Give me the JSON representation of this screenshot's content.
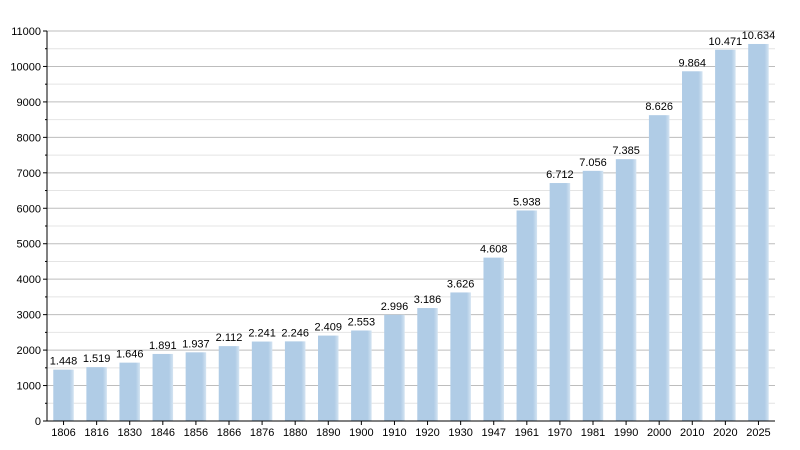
{
  "chart_data": {
    "type": "bar",
    "title": "",
    "xlabel": "",
    "ylabel": "",
    "ylim": [
      0,
      11000
    ],
    "yticks": [
      0,
      1000,
      2000,
      3000,
      4000,
      5000,
      6000,
      7000,
      8000,
      9000,
      10000,
      11000
    ],
    "ytick_labels": [
      "0",
      "1000",
      "2000",
      "3000",
      "4000",
      "5000",
      "6000",
      "7000",
      "8000",
      "9000",
      "10000",
      "11000"
    ],
    "grid": true,
    "legend": "none",
    "bar_color": "#b0cce6",
    "categories": [
      "1806",
      "1816",
      "1830",
      "1846",
      "1856",
      "1866",
      "1876",
      "1880",
      "1890",
      "1900",
      "1910",
      "1920",
      "1930",
      "1947",
      "1961",
      "1970",
      "1981",
      "1990",
      "2000",
      "2010",
      "2020",
      "2025"
    ],
    "values": [
      1448,
      1519,
      1646,
      1891,
      1937,
      2112,
      2241,
      2246,
      2409,
      2553,
      2996,
      3186,
      3626,
      4608,
      5938,
      6712,
      7056,
      7385,
      8626,
      9864,
      10471,
      10634
    ],
    "value_labels": [
      "1.448",
      "1.519",
      "1.646",
      "1.891",
      "1.937",
      "2.112",
      "2.241",
      "2.246",
      "2.409",
      "2.553",
      "2.996",
      "3.186",
      "3.626",
      "4.608",
      "5.938",
      "6.712",
      "7.056",
      "7.385",
      "8.626",
      "9.864",
      "10.471",
      "10.634"
    ]
  }
}
